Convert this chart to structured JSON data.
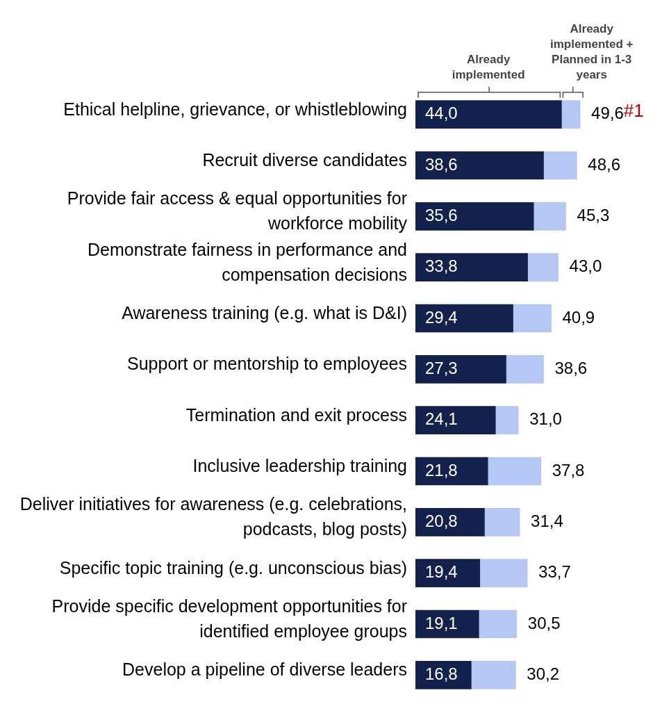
{
  "chart_data": {
    "type": "bar",
    "orientation": "horizontal",
    "stacked": true,
    "categories": [
      "Ethical helpline, grievance, or whistleblowing",
      "Recruit diverse candidates",
      "Provide fair access & equal opportunities for workforce mobility",
      "Demonstrate fairness in performance and compensation decisions",
      "Awareness training (e.g. what is D&I)",
      "Support or mentorship to employees",
      "Termination and exit process",
      "Inclusive leadership training",
      "Deliver initiatives for awareness (e.g. celebrations, podcasts, blog posts)",
      "Specific topic training (e.g. unconscious bias)",
      "Provide specific development opportunities for identified employee groups",
      "Develop a pipeline of diverse leaders"
    ],
    "series": [
      {
        "name": "Already implemented",
        "color": "#13214d",
        "values": [
          44.0,
          38.6,
          35.6,
          33.8,
          29.4,
          27.3,
          24.1,
          21.8,
          20.8,
          19.4,
          19.1,
          16.8
        ],
        "value_labels": [
          "44,0",
          "38,6",
          "35,6",
          "33,8",
          "29,4",
          "27,3",
          "24,1",
          "21,8",
          "20,8",
          "19,4",
          "19,1",
          "16,8"
        ]
      },
      {
        "name": "Already implemented + Planned in 1-3 years",
        "color": "#b4c7f5",
        "values": [
          5.6,
          10.0,
          9.7,
          9.2,
          11.5,
          11.3,
          6.9,
          16.0,
          10.6,
          14.3,
          11.4,
          13.4
        ]
      }
    ],
    "totals": [
      "49,6",
      "48,6",
      "45,3",
      "43,0",
      "40,9",
      "38,6",
      "31,0",
      "37,8",
      "31,4",
      "33,7",
      "30,5",
      "30,2"
    ],
    "tick_labels": "y",
    "legend": false,
    "annotations": [
      {
        "text": "#1",
        "x": 49.6,
        "y": "Ethical helpline, grievance, or whistleblowing"
      }
    ]
  }
}
